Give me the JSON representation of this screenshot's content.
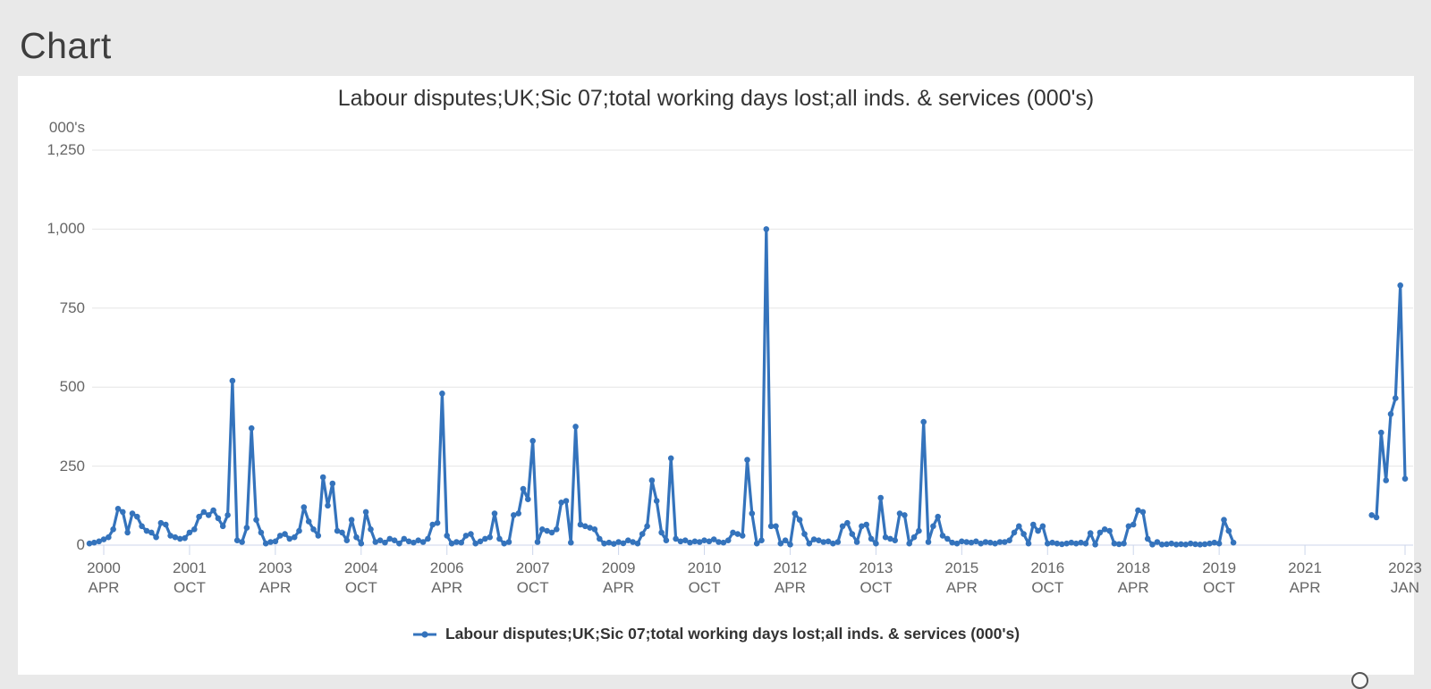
{
  "page": {
    "heading": "Chart"
  },
  "chart": {
    "title": "Labour disputes;UK;Sic 07;total working days lost;all inds. & services (000's)",
    "y_unit_label": "000's",
    "colors": {
      "series": "#3473bc",
      "gridline": "#e6e6e6",
      "axis_line": "#ccd6eb",
      "axis_text": "#666666",
      "title_text": "#333333"
    }
  },
  "legend": {
    "label": "Labour disputes;UK;Sic 07;total working days lost;all inds. & services (000's)"
  },
  "chart_data": {
    "type": "line",
    "title": "Labour disputes;UK;Sic 07;total working days lost;all inds. & services (000's)",
    "ylabel": "000's",
    "ylim": [
      0,
      1250
    ],
    "grid": "horizontal",
    "legend_position": "bottom",
    "frequency": "monthly",
    "x_start": "2000-01",
    "x_end": "2023-01",
    "data_gap": {
      "from": "2020-02",
      "to": "2022-05"
    },
    "yticks": [
      {
        "v": 0,
        "label": "0"
      },
      {
        "v": 250,
        "label": "250"
      },
      {
        "v": 500,
        "label": "500"
      },
      {
        "v": 750,
        "label": "750"
      },
      {
        "v": 1000,
        "label": "1,000"
      },
      {
        "v": 1250,
        "label": "1,250"
      }
    ],
    "xticks": [
      {
        "year": "2000",
        "month": "APR",
        "m": 3
      },
      {
        "year": "2001",
        "month": "OCT",
        "m": 21
      },
      {
        "year": "2003",
        "month": "APR",
        "m": 39
      },
      {
        "year": "2004",
        "month": "OCT",
        "m": 57
      },
      {
        "year": "2006",
        "month": "APR",
        "m": 75
      },
      {
        "year": "2007",
        "month": "OCT",
        "m": 93
      },
      {
        "year": "2009",
        "month": "APR",
        "m": 111
      },
      {
        "year": "2010",
        "month": "OCT",
        "m": 129
      },
      {
        "year": "2012",
        "month": "APR",
        "m": 147
      },
      {
        "year": "2013",
        "month": "OCT",
        "m": 165
      },
      {
        "year": "2015",
        "month": "APR",
        "m": 183
      },
      {
        "year": "2016",
        "month": "OCT",
        "m": 201
      },
      {
        "year": "2018",
        "month": "APR",
        "m": 219
      },
      {
        "year": "2019",
        "month": "OCT",
        "m": 237
      },
      {
        "year": "2021",
        "month": "APR",
        "m": 255
      },
      {
        "year": "2023",
        "month": "JAN",
        "m": 276
      }
    ],
    "series": [
      {
        "name": "Labour disputes;UK;Sic 07;total working days lost;all inds. & services (000's)",
        "values": [
          5,
          8,
          12,
          18,
          25,
          50,
          115,
          105,
          40,
          100,
          90,
          60,
          45,
          40,
          25,
          70,
          65,
          30,
          25,
          20,
          22,
          40,
          50,
          90,
          105,
          95,
          110,
          85,
          60,
          95,
          520,
          15,
          10,
          55,
          370,
          80,
          40,
          5,
          10,
          12,
          30,
          35,
          20,
          25,
          45,
          120,
          75,
          50,
          30,
          215,
          125,
          195,
          45,
          40,
          15,
          80,
          25,
          5,
          105,
          50,
          10,
          15,
          8,
          20,
          15,
          5,
          20,
          12,
          8,
          15,
          10,
          20,
          65,
          70,
          480,
          30,
          5,
          10,
          8,
          30,
          35,
          5,
          12,
          20,
          25,
          100,
          20,
          5,
          10,
          95,
          100,
          178,
          145,
          330,
          10,
          50,
          45,
          40,
          50,
          135,
          140,
          8,
          375,
          65,
          60,
          55,
          50,
          20,
          5,
          8,
          4,
          10,
          6,
          15,
          10,
          5,
          35,
          60,
          205,
          140,
          40,
          15,
          275,
          20,
          12,
          15,
          8,
          12,
          10,
          15,
          12,
          18,
          10,
          8,
          15,
          40,
          35,
          30,
          270,
          100,
          5,
          15,
          1000,
          60,
          60,
          5,
          15,
          2,
          100,
          80,
          35,
          5,
          18,
          15,
          10,
          12,
          5,
          10,
          60,
          70,
          35,
          10,
          60,
          65,
          20,
          5,
          150,
          25,
          20,
          15,
          100,
          95,
          5,
          25,
          45,
          390,
          10,
          60,
          90,
          30,
          20,
          8,
          5,
          12,
          10,
          8,
          12,
          5,
          10,
          8,
          5,
          10,
          10,
          15,
          40,
          60,
          35,
          5,
          65,
          45,
          60,
          5,
          8,
          5,
          3,
          5,
          8,
          5,
          8,
          5,
          38,
          2,
          40,
          50,
          45,
          5,
          3,
          5,
          60,
          65,
          110,
          105,
          20,
          2,
          10,
          2,
          3,
          5,
          2,
          3,
          2,
          5,
          3,
          2,
          3,
          5,
          8,
          5,
          80,
          45,
          8,
          null,
          null,
          null,
          null,
          null,
          null,
          null,
          null,
          null,
          null,
          null,
          null,
          null,
          null,
          null,
          null,
          null,
          null,
          null,
          null,
          null,
          null,
          null,
          null,
          null,
          null,
          null,
          null,
          95,
          88,
          356,
          205,
          415,
          465,
          822,
          210
        ]
      }
    ]
  }
}
